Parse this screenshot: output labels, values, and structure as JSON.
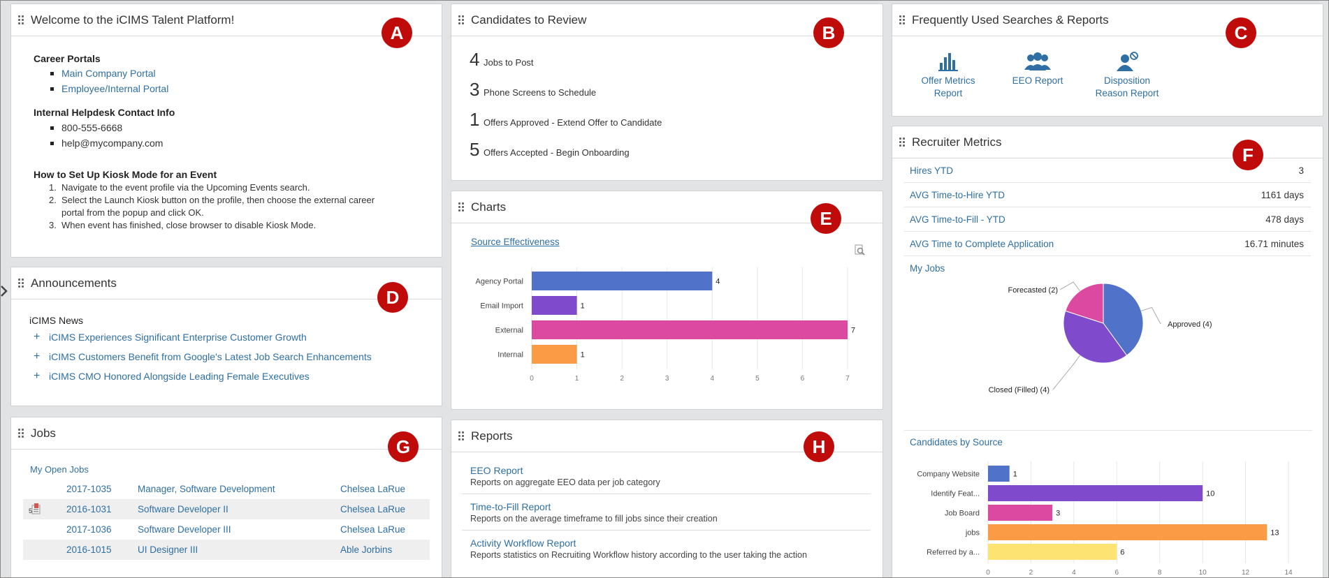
{
  "welcome": {
    "title": "Welcome to the iCIMS Talent Platform!",
    "badge": "A",
    "career_portals_heading": "Career Portals",
    "career_portals": [
      "Main Company Portal",
      "Employee/Internal Portal"
    ],
    "helpdesk_heading": "Internal Helpdesk Contact Info",
    "helpdesk": [
      "800-555-6668",
      "help@mycompany.com"
    ],
    "kiosk_heading": "How to Set Up Kiosk Mode for an Event",
    "kiosk_steps": [
      {
        "num": "1.",
        "text": "Navigate to the event profile via the Upcoming Events search."
      },
      {
        "num": "2.",
        "text": "Select the Launch Kiosk button on the profile, then choose the external career portal from the popup and click OK."
      },
      {
        "num": "3.",
        "text": "When event has finished, close browser to disable Kiosk Mode."
      }
    ]
  },
  "candidates": {
    "title": "Candidates to Review",
    "badge": "B",
    "items": [
      {
        "count": "4",
        "label": "Jobs to Post"
      },
      {
        "count": "3",
        "label": "Phone Screens to Schedule"
      },
      {
        "count": "1",
        "label": "Offers Approved - Extend Offer to Candidate"
      },
      {
        "count": "5",
        "label": "Offers Accepted - Begin Onboarding"
      }
    ]
  },
  "searches": {
    "title": "Frequently Used Searches & Reports",
    "badge": "C",
    "items": [
      {
        "line1": "Offer Metrics",
        "line2": "Report",
        "icon": "bar-chart-icon"
      },
      {
        "line1": "EEO Report",
        "line2": "",
        "icon": "people-group-icon"
      },
      {
        "line1": "Disposition",
        "line2": "Reason Report",
        "icon": "person-blocked-icon"
      }
    ]
  },
  "announcements": {
    "title": "Announcements",
    "badge": "D",
    "heading": "iCIMS News",
    "items": [
      "iCIMS Experiences Significant Enterprise Customer Growth",
      "iCIMS Customers Benefit from Google's Latest Job Search Enhancements",
      "iCIMS CMO Honored Alongside Leading Female Executives"
    ]
  },
  "charts": {
    "title": "Charts",
    "badge": "E",
    "link": "Source Effectiveness"
  },
  "metrics": {
    "title": "Recruiter Metrics",
    "badge": "F",
    "rows": [
      {
        "label": "Hires YTD",
        "value": "3"
      },
      {
        "label": "AVG Time-to-Hire YTD",
        "value": "1161 days"
      },
      {
        "label": "AVG Time-to-Fill - YTD",
        "value": "478 days"
      },
      {
        "label": "AVG Time to Complete Application",
        "value": "16.71 minutes"
      }
    ],
    "my_jobs": "My Jobs",
    "candidates_by_source": "Candidates by Source"
  },
  "jobs": {
    "title": "Jobs",
    "badge": "G",
    "subheading": "My Open Jobs",
    "rows": [
      {
        "id": "2017-1035",
        "title": "Manager, Software Development",
        "recruiter": "Chelsea LaRue",
        "flag": ""
      },
      {
        "id": "2016-1031",
        "title": "Software Developer II",
        "recruiter": "Chelsea LaRue",
        "flag": "5"
      },
      {
        "id": "2017-1036",
        "title": "Software Developer III",
        "recruiter": "Chelsea LaRue",
        "flag": ""
      },
      {
        "id": "2016-1015",
        "title": "UI Designer III",
        "recruiter": "Able Jorbins",
        "flag": ""
      }
    ]
  },
  "reports": {
    "title": "Reports",
    "badge": "H",
    "items": [
      {
        "name": "EEO Report",
        "desc": "Reports on aggregate EEO data per job category"
      },
      {
        "name": "Time-to-Fill Report",
        "desc": "Reports on the average timeframe to fill jobs since their creation"
      },
      {
        "name": "Activity Workflow Report",
        "desc": "Reports statistics on Recruiting Workflow history according to the user taking the action"
      }
    ]
  },
  "chart_data": [
    {
      "type": "bar",
      "orientation": "horizontal",
      "title": "Source Effectiveness",
      "categories": [
        "Agency Portal",
        "Email Import",
        "External",
        "Internal"
      ],
      "values": [
        4,
        1,
        7,
        1
      ],
      "colors": [
        "#5172c9",
        "#7f4bcc",
        "#db4aa0",
        "#fb9b45"
      ],
      "xlim": [
        0,
        7
      ],
      "ticks": [
        0,
        1,
        2,
        3,
        4,
        5,
        6,
        7
      ],
      "grid": true
    },
    {
      "type": "pie",
      "title": "My Jobs",
      "slices": [
        {
          "label": "Approved (4)",
          "value": 4,
          "color": "#5172c9"
        },
        {
          "label": "Closed (Filled) (4)",
          "value": 4,
          "color": "#7f4bcc"
        },
        {
          "label": "Forecasted (2)",
          "value": 2,
          "color": "#db4aa0"
        }
      ]
    },
    {
      "type": "bar",
      "orientation": "horizontal",
      "title": "Candidates by Source",
      "categories": [
        "Company Website",
        "Identify Feat...",
        "Job Board",
        "jobs",
        "Referred by a..."
      ],
      "values": [
        1,
        10,
        3,
        13,
        6
      ],
      "colors": [
        "#5172c9",
        "#7f4bcc",
        "#db4aa0",
        "#fb9b45",
        "#fde372"
      ],
      "xlim": [
        0,
        14
      ],
      "ticks": [
        0,
        2,
        4,
        6,
        8,
        10,
        12,
        14
      ],
      "grid": true
    }
  ]
}
